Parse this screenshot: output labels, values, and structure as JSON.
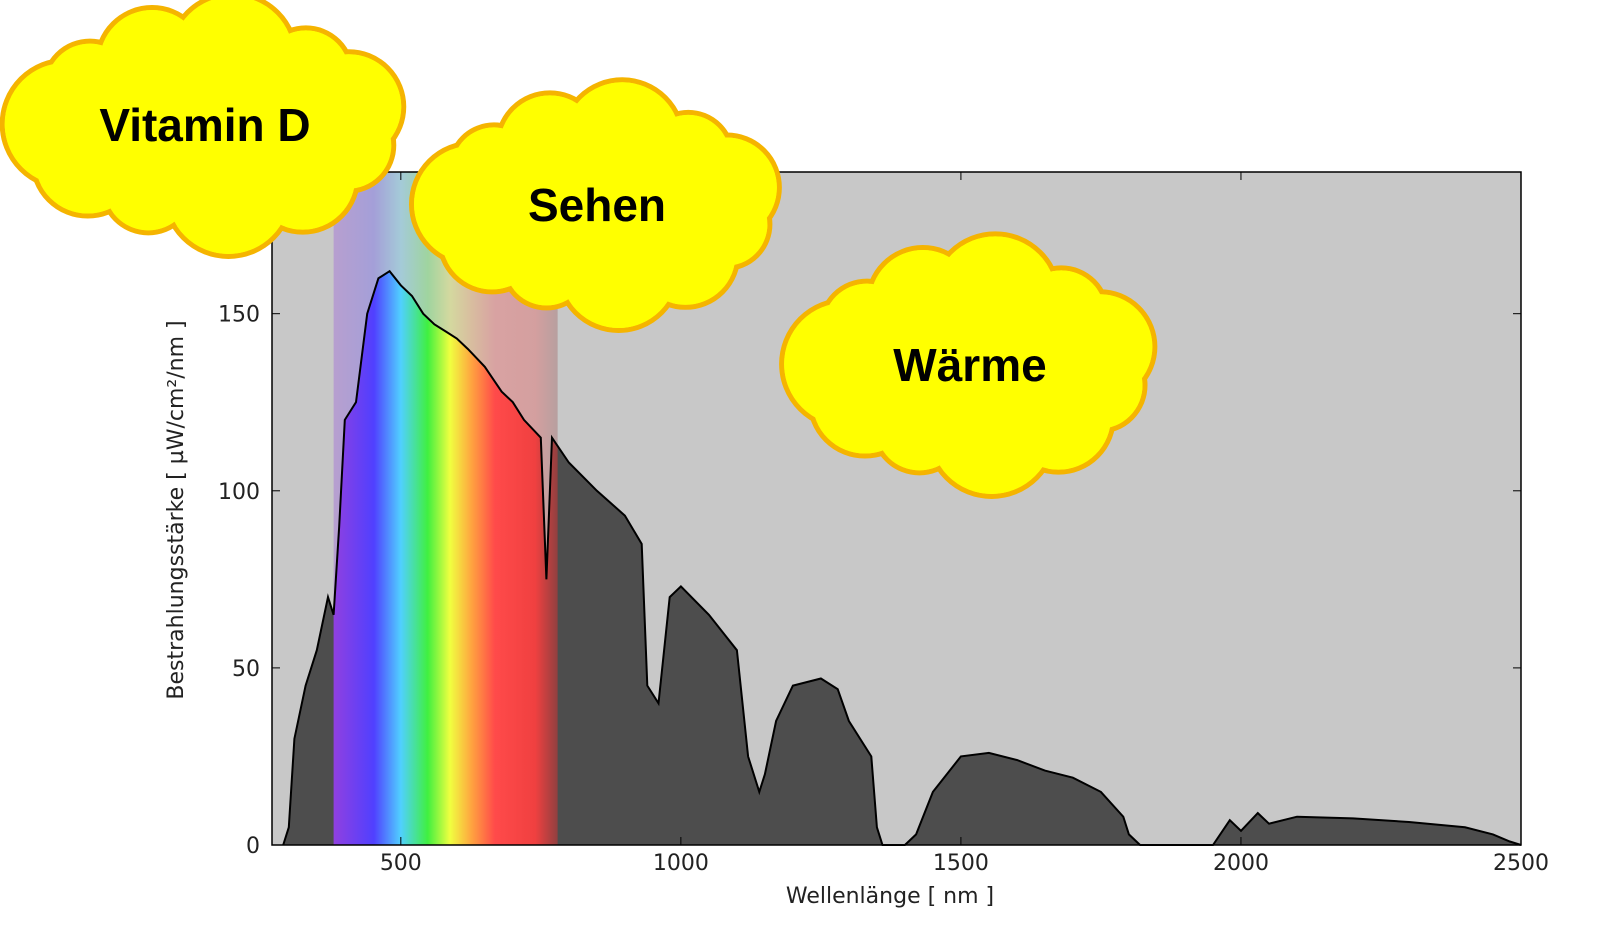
{
  "chart_data": {
    "type": "area",
    "x_label": "Wellenlänge  [ nm ]",
    "y_label": "Bestrahlungsstärke  [ µW/cm²/nm ]",
    "annotations": [
      "Vitamin D",
      "Sehen",
      "Wärme"
    ],
    "x": [
      290,
      300,
      310,
      330,
      350,
      370,
      380,
      390,
      400,
      420,
      440,
      460,
      480,
      500,
      520,
      540,
      560,
      580,
      600,
      620,
      650,
      680,
      700,
      720,
      750,
      760,
      770,
      800,
      850,
      900,
      930,
      940,
      960,
      980,
      1000,
      1050,
      1100,
      1120,
      1140,
      1150,
      1170,
      1200,
      1250,
      1280,
      1300,
      1340,
      1350,
      1360,
      1400,
      1420,
      1450,
      1500,
      1550,
      1600,
      1650,
      1700,
      1750,
      1790,
      1800,
      1820,
      1950,
      1980,
      2000,
      2030,
      2050,
      2100,
      2200,
      2300,
      2400,
      2450,
      2480,
      2500
    ],
    "values": [
      0,
      5,
      30,
      45,
      55,
      70,
      65,
      90,
      120,
      125,
      150,
      160,
      162,
      158,
      155,
      150,
      147,
      145,
      143,
      140,
      135,
      128,
      125,
      120,
      115,
      75,
      115,
      108,
      100,
      93,
      85,
      45,
      40,
      70,
      73,
      65,
      55,
      25,
      15,
      20,
      35,
      45,
      47,
      44,
      35,
      25,
      5,
      0,
      0,
      3,
      15,
      25,
      26,
      24,
      21,
      19,
      15,
      8,
      3,
      0,
      0,
      7,
      4,
      9,
      6,
      8,
      7.5,
      6.5,
      5,
      3,
      1,
      0
    ],
    "highlight_range": [
      380,
      780
    ],
    "xlim": [
      270,
      2500
    ],
    "ylim": [
      0,
      190
    ],
    "xticks": [
      500,
      1000,
      1500,
      2000,
      2500
    ],
    "yticks": [
      0,
      50,
      100,
      150
    ],
    "background_color": "#c8c8c8",
    "fill_color": "#4d4d4d",
    "line_color": "#000000"
  }
}
